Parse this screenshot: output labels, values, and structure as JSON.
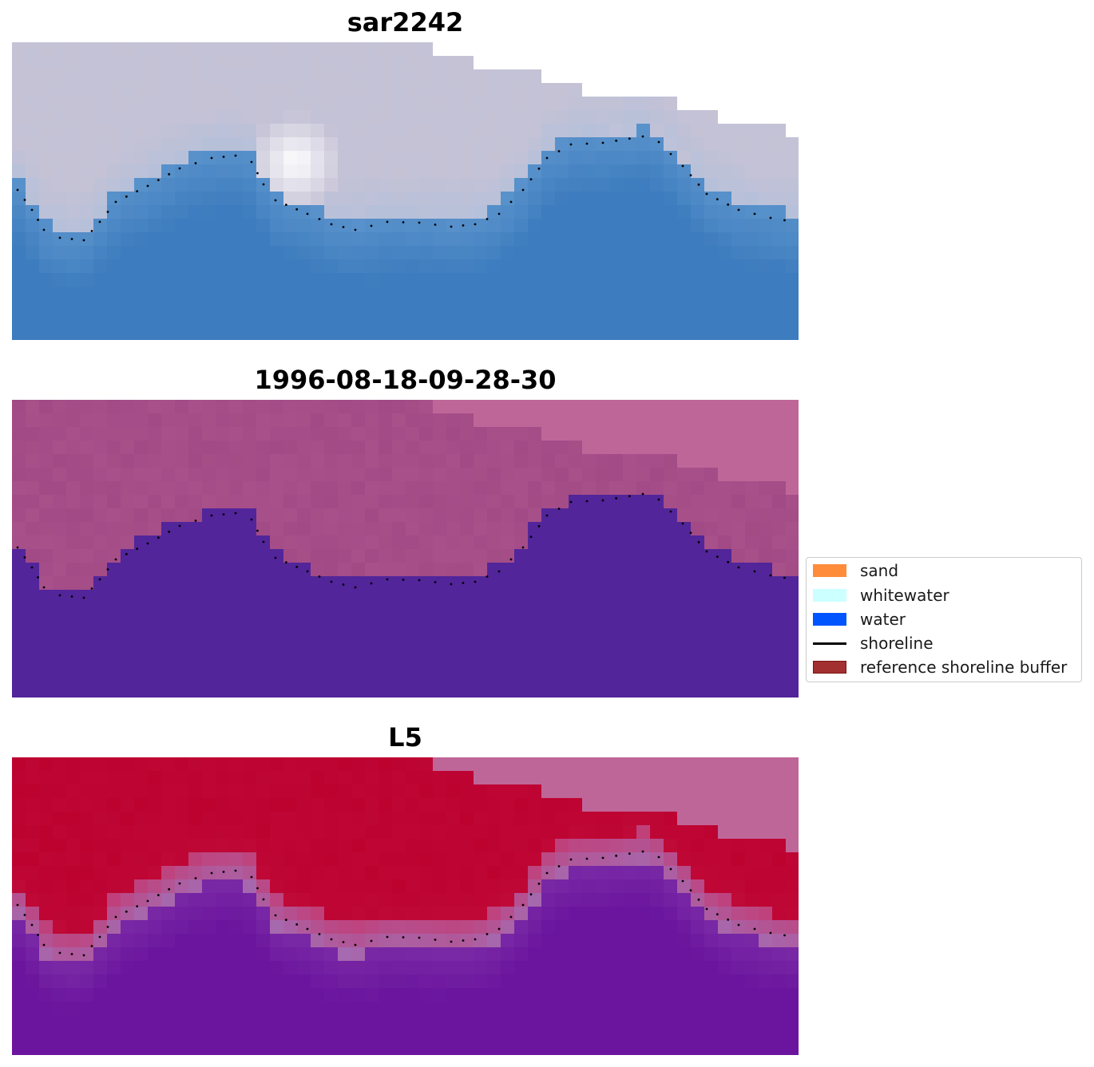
{
  "panels": [
    {
      "title": "sar2242",
      "style": "rgb"
    },
    {
      "title": "1996-08-18-09-28-30",
      "style": "classified"
    },
    {
      "title": "L5",
      "style": "probability"
    }
  ],
  "legend": {
    "items": [
      {
        "label": "sand",
        "color": "#ff8c3a",
        "kind": "patch"
      },
      {
        "label": "whitewater",
        "color": "#ccffff",
        "kind": "patch"
      },
      {
        "label": "water",
        "color": "#0055ff",
        "kind": "patch"
      },
      {
        "label": "shoreline",
        "color": "#000000",
        "kind": "line"
      },
      {
        "label": "reference shoreline buffer",
        "color": "#a33030",
        "kind": "patch-outlined"
      }
    ]
  },
  "colors": {
    "sky_pale": "#c6c2d6",
    "sky_white": "#ffffff",
    "water_blue": "#3d7cbe",
    "water_light": "#70c3f4",
    "class_pink": "#a24a85",
    "class_nodata": "#bf6699",
    "class_water": "#52259a",
    "prob_red": "#bd0230",
    "prob_purple": "#6b159e",
    "prob_nodata": "#bf6699",
    "shoreline_dots": "#000000"
  }
}
